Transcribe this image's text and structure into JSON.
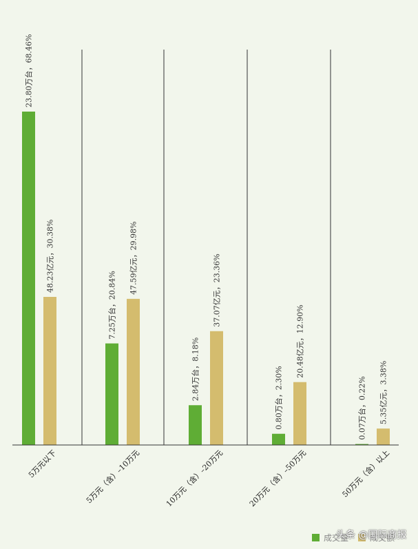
{
  "chart_data": {
    "type": "bar",
    "categories": [
      "5万元以下",
      "5万元（含）–10万元",
      "10万元（含）–20万元",
      "20万元（含）–50万元",
      "50万元（含）以上"
    ],
    "series": [
      {
        "name": "成交量",
        "color": "#5fad35",
        "values": [
          23.8,
          7.25,
          2.84,
          0.8,
          0.07
        ],
        "labels": [
          "23.80万台，68.46%",
          "7.25万台，20.84%",
          "2.84万台，8.18%",
          "0.80万台，2.30%",
          "0.07万台，0.22%"
        ]
      },
      {
        "name": "成交额",
        "color": "#d4bc6e",
        "values": [
          48.23,
          47.59,
          37.07,
          20.48,
          5.35
        ],
        "labels": [
          "48.23亿元，30.38%",
          "47.59亿元，29.98%",
          "37.07亿元，23.36%",
          "20.48亿元，12.90%",
          "5.35亿元，3.38%"
        ]
      }
    ],
    "title": "",
    "xlabel": "",
    "ylabel": "",
    "grid": false,
    "legend": "bottom-right"
  },
  "watermark": "头条 @国际商报"
}
